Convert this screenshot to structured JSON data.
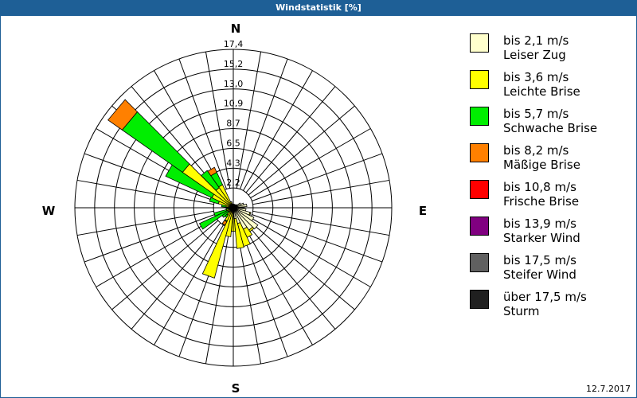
{
  "window": {
    "title": "Windstatistik [%]",
    "date": "12.7.2017"
  },
  "compass": {
    "n": "N",
    "e": "E",
    "s": "S",
    "w": "W"
  },
  "legend": [
    {
      "range": "bis 2,1 m/s",
      "name": "Leiser Zug",
      "color": "#ffffcc"
    },
    {
      "range": "bis 3,6 m/s",
      "name": "Leichte Brise",
      "color": "#ffff00"
    },
    {
      "range": "bis 5,7 m/s",
      "name": "Schwache Brise",
      "color": "#00ee00"
    },
    {
      "range": "bis 8,2 m/s",
      "name": "Mäßige Brise",
      "color": "#ff8000"
    },
    {
      "range": "bis 10,8 m/s",
      "name": "Frische Brise",
      "color": "#ff0000"
    },
    {
      "range": "bis 13,9 m/s",
      "name": "Starker Wind",
      "color": "#800080"
    },
    {
      "range": "bis 17,5 m/s",
      "name": "Steifer Wind",
      "color": "#606060"
    },
    {
      "range": "über 17,5 m/s",
      "name": "Sturm",
      "color": "#202020"
    }
  ],
  "chart_data": {
    "type": "wind_rose",
    "title": "Windstatistik [%]",
    "unit": "%",
    "rmax": 17.4,
    "ring_labels": [
      "2,2",
      "4,3",
      "6,5",
      "8,7",
      "10,9",
      "13,0",
      "15,2",
      "17,4"
    ],
    "ring_values": [
      2.2,
      4.3,
      6.5,
      8.7,
      10.9,
      13.0,
      15.2,
      17.4
    ],
    "sector_width_deg": 10,
    "series_order": [
      "bis 2,1 m/s",
      "bis 3,6 m/s",
      "bis 5,7 m/s",
      "bis 8,2 m/s",
      "bis 10,8 m/s",
      "bis 13,9 m/s",
      "bis 17,5 m/s",
      "über 17,5 m/s"
    ],
    "sectors": [
      {
        "dir": 0,
        "values": [
          0.4,
          0.0,
          0.0,
          0.0
        ]
      },
      {
        "dir": 10,
        "values": [
          0.3,
          0.0,
          0.0,
          0.0
        ]
      },
      {
        "dir": 20,
        "values": [
          0.3,
          0.0,
          0.0,
          0.0
        ]
      },
      {
        "dir": 30,
        "values": [
          0.3,
          0.0,
          0.0,
          0.0
        ]
      },
      {
        "dir": 40,
        "values": [
          0.4,
          0.0,
          0.0,
          0.0
        ]
      },
      {
        "dir": 50,
        "values": [
          0.5,
          0.0,
          0.0,
          0.0
        ]
      },
      {
        "dir": 60,
        "values": [
          0.9,
          0.0,
          0.0,
          0.0
        ]
      },
      {
        "dir": 70,
        "values": [
          1.2,
          0.0,
          0.0,
          0.0
        ]
      },
      {
        "dir": 80,
        "values": [
          1.5,
          0.0,
          0.0,
          0.0
        ]
      },
      {
        "dir": 90,
        "values": [
          1.2,
          0.0,
          0.0,
          0.0
        ]
      },
      {
        "dir": 100,
        "values": [
          1.4,
          0.0,
          0.0,
          0.0
        ]
      },
      {
        "dir": 110,
        "values": [
          1.9,
          0.1,
          0.0,
          0.0
        ]
      },
      {
        "dir": 120,
        "values": [
          2.5,
          0.0,
          0.0,
          0.0
        ]
      },
      {
        "dir": 130,
        "values": [
          3.3,
          0.0,
          0.0,
          0.0
        ]
      },
      {
        "dir": 140,
        "values": [
          3.0,
          0.2,
          0.0,
          0.0
        ]
      },
      {
        "dir": 150,
        "values": [
          2.6,
          1.0,
          0.0,
          0.0
        ]
      },
      {
        "dir": 160,
        "values": [
          1.8,
          2.6,
          0.0,
          0.0
        ]
      },
      {
        "dir": 170,
        "values": [
          1.2,
          3.3,
          0.0,
          0.0
        ]
      },
      {
        "dir": 180,
        "values": [
          1.0,
          1.6,
          0.0,
          0.0
        ]
      },
      {
        "dir": 190,
        "values": [
          0.6,
          2.6,
          0.0,
          0.0
        ]
      },
      {
        "dir": 200,
        "values": [
          0.4,
          7.6,
          0.0,
          0.0
        ]
      },
      {
        "dir": 210,
        "values": [
          0.2,
          1.4,
          0.1,
          0.4
        ]
      },
      {
        "dir": 220,
        "values": [
          0.2,
          0.8,
          0.3,
          0.0
        ]
      },
      {
        "dir": 230,
        "values": [
          0.2,
          0.4,
          0.9,
          0.0
        ]
      },
      {
        "dir": 240,
        "values": [
          0.2,
          0.5,
          3.4,
          0.0
        ]
      },
      {
        "dir": 250,
        "values": [
          0.2,
          0.6,
          1.4,
          0.0
        ]
      },
      {
        "dir": 260,
        "values": [
          0.2,
          0.3,
          0.3,
          0.0
        ]
      },
      {
        "dir": 270,
        "values": [
          0.2,
          0.1,
          0.0,
          0.0
        ]
      },
      {
        "dir": 280,
        "values": [
          0.2,
          0.6,
          0.5,
          0.0
        ]
      },
      {
        "dir": 290,
        "values": [
          0.2,
          1.5,
          1.0,
          0.0
        ]
      },
      {
        "dir": 300,
        "values": [
          0.2,
          2.4,
          5.6,
          0.0
        ]
      },
      {
        "dir": 310,
        "values": [
          0.2,
          6.6,
          8.1,
          1.9
        ]
      },
      {
        "dir": 320,
        "values": [
          0.2,
          2.5,
          2.3,
          0.0
        ]
      },
      {
        "dir": 330,
        "values": [
          0.2,
          2.6,
          1.5,
          0.6
        ]
      },
      {
        "dir": 340,
        "values": [
          0.3,
          0.4,
          0.0,
          0.0
        ]
      },
      {
        "dir": 350,
        "values": [
          0.3,
          0.1,
          0.0,
          0.0
        ]
      }
    ],
    "legend_position": "right",
    "grid": true
  }
}
